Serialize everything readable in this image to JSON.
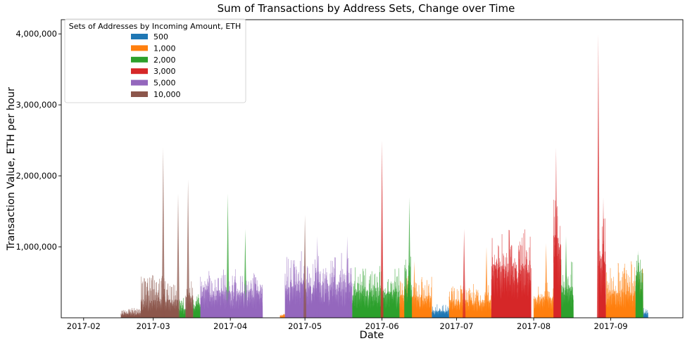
{
  "chart_data": {
    "type": "area",
    "title": "Sum of Transactions by Address Sets, Change over Time",
    "xlabel": "Date",
    "ylabel": "Transaction Value, ETH per hour",
    "x_ticks": [
      "2017-02",
      "2017-03",
      "2017-04",
      "2017-05",
      "2017-06",
      "2017-07",
      "2017-08",
      "2017-09"
    ],
    "y_ticks": [
      {
        "value": 1000000,
        "label": "1,000,000"
      },
      {
        "value": 2000000,
        "label": "2,000,000"
      },
      {
        "value": 3000000,
        "label": "3,000,000"
      },
      {
        "value": 4000000,
        "label": "4,000,000"
      }
    ],
    "xlim": [
      "2017-01-23",
      "2017-09-30"
    ],
    "ylim": [
      0,
      4200000
    ],
    "grid": false,
    "legend": {
      "title": "Sets of Addresses by Incoming Amount, ETH",
      "placement": "top-left"
    },
    "series": [
      {
        "name": "500",
        "color": "#1f77b4",
        "segments": [
          {
            "start": "2017-06-21",
            "end": "2017-06-28",
            "base": 80000,
            "amp": 120000
          },
          {
            "start": "2017-08-27",
            "end": "2017-09-16",
            "base": 60000,
            "amp": 90000
          }
        ],
        "spikes": []
      },
      {
        "name": "1,000",
        "color": "#ff7f0e",
        "segments": [
          {
            "start": "2017-04-21",
            "end": "2017-04-23",
            "base": 30000,
            "amp": 30000
          },
          {
            "start": "2017-06-08",
            "end": "2017-06-21",
            "base": 250000,
            "amp": 300000
          },
          {
            "start": "2017-06-28",
            "end": "2017-07-15",
            "base": 200000,
            "amp": 250000
          },
          {
            "start": "2017-08-01",
            "end": "2017-08-12",
            "base": 230000,
            "amp": 200000
          },
          {
            "start": "2017-08-29",
            "end": "2017-09-14",
            "base": 300000,
            "amp": 450000
          }
        ],
        "spikes": [
          {
            "date": "2017-06-14",
            "value": 800000
          },
          {
            "date": "2017-07-13",
            "value": 1000000
          },
          {
            "date": "2017-08-06",
            "value": 1050000
          }
        ]
      },
      {
        "name": "2,000",
        "color": "#2ca02c",
        "segments": [
          {
            "start": "2017-03-11",
            "end": "2017-03-14",
            "base": 100000,
            "amp": 150000
          },
          {
            "start": "2017-03-17",
            "end": "2017-03-20",
            "base": 150000,
            "amp": 150000
          },
          {
            "start": "2017-05-20",
            "end": "2017-06-08",
            "base": 300000,
            "amp": 350000
          },
          {
            "start": "2017-06-10",
            "end": "2017-06-13",
            "base": 400000,
            "amp": 400000
          },
          {
            "start": "2017-08-12",
            "end": "2017-08-17",
            "base": 350000,
            "amp": 450000
          },
          {
            "start": "2017-09-11",
            "end": "2017-09-14",
            "base": 500000,
            "amp": 300000
          }
        ],
        "spikes": [
          {
            "date": "2017-03-31",
            "value": 1750000
          },
          {
            "date": "2017-04-07",
            "value": 1250000
          },
          {
            "date": "2017-06-12",
            "value": 1700000
          },
          {
            "date": "2017-08-14",
            "value": 1150000
          },
          {
            "date": "2017-09-12",
            "value": 950000
          }
        ]
      },
      {
        "name": "3,000",
        "color": "#d62728",
        "segments": [
          {
            "start": "2017-07-15",
            "end": "2017-07-31",
            "base": 600000,
            "amp": 600000
          },
          {
            "start": "2017-08-09",
            "end": "2017-08-12",
            "base": 900000,
            "amp": 800000
          },
          {
            "start": "2017-08-27",
            "end": "2017-08-30",
            "base": 700000,
            "amp": 600000
          }
        ],
        "spikes": [
          {
            "date": "2017-06-01",
            "value": 2500000
          },
          {
            "date": "2017-07-04",
            "value": 1250000
          },
          {
            "date": "2017-08-10",
            "value": 2400000
          },
          {
            "date": "2017-08-27",
            "value": 4000000
          },
          {
            "date": "2017-08-29",
            "value": 1700000
          }
        ]
      },
      {
        "name": "5,000",
        "color": "#9467bd",
        "segments": [
          {
            "start": "2017-03-20",
            "end": "2017-04-14",
            "base": 300000,
            "amp": 300000
          },
          {
            "start": "2017-04-23",
            "end": "2017-05-20",
            "base": 400000,
            "amp": 450000
          }
        ],
        "spikes": [
          {
            "date": "2017-05-06",
            "value": 1150000
          },
          {
            "date": "2017-05-18",
            "value": 1150000
          }
        ]
      },
      {
        "name": "10,000",
        "color": "#8c564b",
        "segments": [
          {
            "start": "2017-02-16",
            "end": "2017-02-24",
            "base": 50000,
            "amp": 80000
          },
          {
            "start": "2017-02-24",
            "end": "2017-03-11",
            "base": 200000,
            "amp": 400000
          },
          {
            "start": "2017-03-14",
            "end": "2017-03-17",
            "base": 250000,
            "amp": 200000
          }
        ],
        "spikes": [
          {
            "date": "2017-03-05",
            "value": 2400000
          },
          {
            "date": "2017-03-11",
            "value": 1750000
          },
          {
            "date": "2017-03-15",
            "value": 1950000
          },
          {
            "date": "2017-05-01",
            "value": 1450000
          }
        ]
      }
    ]
  }
}
